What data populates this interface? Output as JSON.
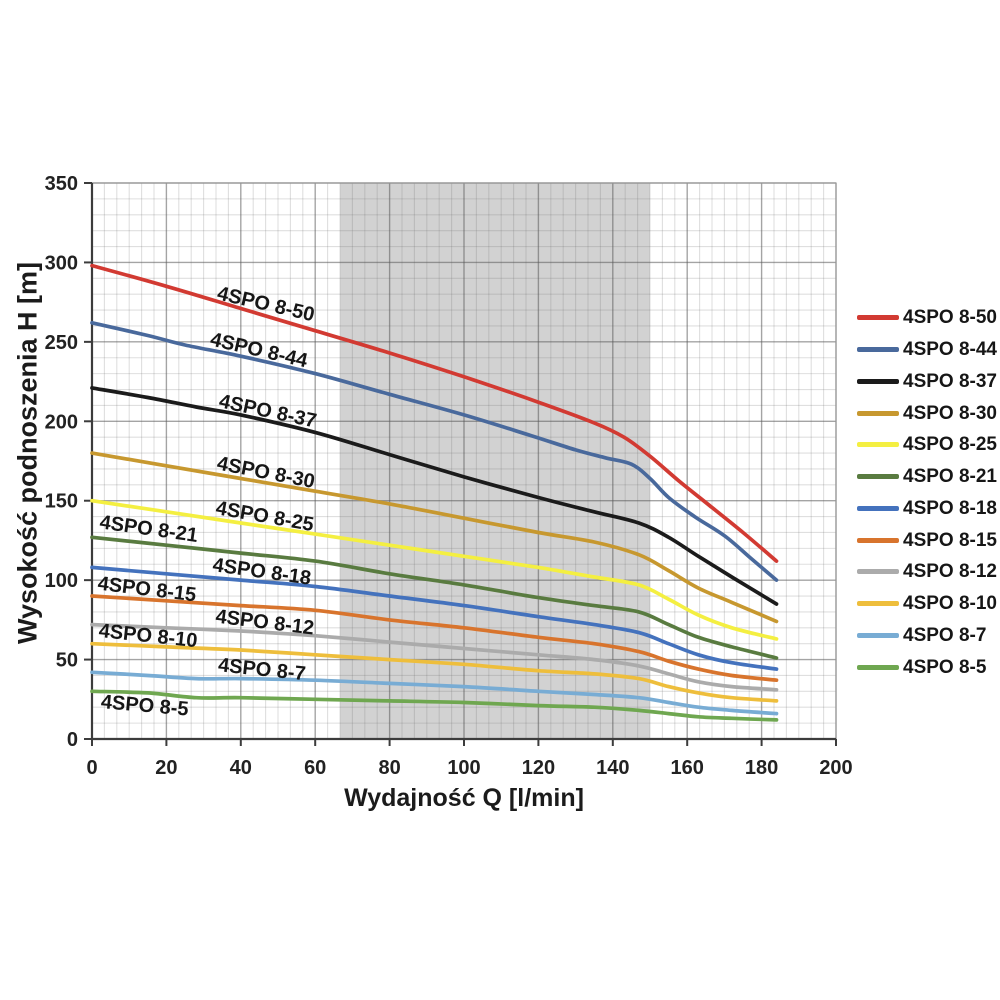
{
  "chart_data": {
    "type": "line",
    "title": "",
    "xlabel": "Wydajność Q [l/min]",
    "ylabel": "Wysokość podnoszenia H [m]",
    "xlim": [
      0,
      200
    ],
    "ylim": [
      0,
      350
    ],
    "x_major_ticks": [
      0,
      20,
      40,
      60,
      80,
      100,
      120,
      140,
      160,
      180,
      200
    ],
    "y_major_ticks": [
      0,
      50,
      100,
      150,
      200,
      250,
      300,
      350
    ],
    "x_minor_divisions": 6,
    "y_minor_divisions": 5,
    "grid": true,
    "legend_position": "right",
    "operating_band": {
      "x0": 66.7,
      "x1": 150,
      "color": "#d2d2d2"
    },
    "series": [
      {
        "name": "4SPO 8-50",
        "color": "#d23a32",
        "points": [
          [
            0,
            298
          ],
          [
            20,
            285
          ],
          [
            40,
            271
          ],
          [
            60,
            257
          ],
          [
            80,
            243
          ],
          [
            100,
            228
          ],
          [
            120,
            212
          ],
          [
            135,
            199
          ],
          [
            143,
            190
          ],
          [
            150,
            178
          ],
          [
            158,
            162
          ],
          [
            166,
            147
          ],
          [
            175,
            130
          ],
          [
            184,
            112
          ]
        ],
        "label": {
          "q": 46.8,
          "h": 274.2,
          "angle": 13
        }
      },
      {
        "name": "4SPO 8-44",
        "color": "#49699c",
        "points": [
          [
            0,
            262
          ],
          [
            15,
            254
          ],
          [
            25,
            248
          ],
          [
            40,
            241
          ],
          [
            60,
            230
          ],
          [
            80,
            217
          ],
          [
            100,
            204
          ],
          [
            118,
            191
          ],
          [
            130,
            182
          ],
          [
            138,
            177
          ],
          [
            145,
            173
          ],
          [
            150,
            164
          ],
          [
            155,
            152
          ],
          [
            162,
            140
          ],
          [
            170,
            128
          ],
          [
            177,
            114
          ],
          [
            184,
            100
          ]
        ],
        "label": {
          "q": 44.9,
          "h": 245.2,
          "angle": 13
        }
      },
      {
        "name": "4SPO 8-37",
        "color": "#1b1b1b",
        "points": [
          [
            0,
            221
          ],
          [
            15,
            215
          ],
          [
            28,
            209
          ],
          [
            40,
            204
          ],
          [
            60,
            193
          ],
          [
            80,
            179
          ],
          [
            100,
            165
          ],
          [
            120,
            152
          ],
          [
            135,
            143
          ],
          [
            147,
            136
          ],
          [
            155,
            127
          ],
          [
            163,
            115
          ],
          [
            172,
            102
          ],
          [
            184,
            85
          ]
        ],
        "label": {
          "q": 47.3,
          "h": 206.8,
          "angle": 12
        }
      },
      {
        "name": "4SPO 8-30",
        "color": "#c7982f",
        "points": [
          [
            0,
            180
          ],
          [
            20,
            172
          ],
          [
            40,
            164
          ],
          [
            60,
            156
          ],
          [
            80,
            148
          ],
          [
            100,
            139
          ],
          [
            120,
            130
          ],
          [
            135,
            124
          ],
          [
            147,
            116
          ],
          [
            155,
            106
          ],
          [
            163,
            95
          ],
          [
            172,
            86
          ],
          [
            184,
            74
          ]
        ],
        "label": {
          "q": 46.8,
          "h": 168.2,
          "angle": 11
        }
      },
      {
        "name": "4SPO 8-25",
        "color": "#f4ef41",
        "points": [
          [
            0,
            150
          ],
          [
            20,
            143
          ],
          [
            40,
            136
          ],
          [
            60,
            129
          ],
          [
            80,
            122
          ],
          [
            100,
            115
          ],
          [
            120,
            108
          ],
          [
            135,
            102
          ],
          [
            147,
            97
          ],
          [
            155,
            88
          ],
          [
            163,
            78
          ],
          [
            172,
            70
          ],
          [
            184,
            63
          ]
        ],
        "label": {
          "q": 46.5,
          "h": 140.6,
          "angle": 10
        }
      },
      {
        "name": "4SPO 8-21",
        "color": "#597b40",
        "points": [
          [
            0,
            127
          ],
          [
            20,
            122
          ],
          [
            40,
            117
          ],
          [
            60,
            112
          ],
          [
            80,
            104
          ],
          [
            100,
            97
          ],
          [
            120,
            89
          ],
          [
            135,
            84
          ],
          [
            147,
            80
          ],
          [
            155,
            72
          ],
          [
            163,
            64
          ],
          [
            172,
            58
          ],
          [
            184,
            51
          ]
        ],
        "label": {
          "q": 15.3,
          "h": 132.7,
          "angle": 8
        }
      },
      {
        "name": "4SPO 8-18",
        "color": "#4472bd",
        "points": [
          [
            0,
            108
          ],
          [
            20,
            104
          ],
          [
            40,
            100
          ],
          [
            60,
            96
          ],
          [
            80,
            90
          ],
          [
            100,
            84
          ],
          [
            120,
            77
          ],
          [
            135,
            72
          ],
          [
            147,
            67
          ],
          [
            155,
            60
          ],
          [
            163,
            53
          ],
          [
            172,
            48
          ],
          [
            184,
            44
          ]
        ],
        "label": {
          "q": 45.7,
          "h": 105.8,
          "angle": 8
        }
      },
      {
        "name": "4SPO 8-15",
        "color": "#d8742d",
        "points": [
          [
            0,
            90
          ],
          [
            20,
            87
          ],
          [
            40,
            84
          ],
          [
            60,
            81
          ],
          [
            80,
            75
          ],
          [
            100,
            70
          ],
          [
            120,
            64
          ],
          [
            135,
            60
          ],
          [
            147,
            55
          ],
          [
            155,
            49
          ],
          [
            163,
            44
          ],
          [
            172,
            40
          ],
          [
            184,
            37
          ]
        ],
        "label": {
          "q": 14.8,
          "h": 94.7,
          "angle": 7
        }
      },
      {
        "name": "4SPO 8-12",
        "color": "#ababab",
        "points": [
          [
            0,
            72
          ],
          [
            20,
            70
          ],
          [
            40,
            68
          ],
          [
            60,
            65
          ],
          [
            80,
            61
          ],
          [
            100,
            57
          ],
          [
            120,
            53
          ],
          [
            135,
            50
          ],
          [
            147,
            46
          ],
          [
            155,
            41
          ],
          [
            163,
            36
          ],
          [
            172,
            33
          ],
          [
            184,
            31
          ]
        ],
        "label": {
          "q": 46.5,
          "h": 73.9,
          "angle": 7
        }
      },
      {
        "name": "4SPO 8-10",
        "color": "#eebe3c",
        "points": [
          [
            0,
            60
          ],
          [
            20,
            58
          ],
          [
            40,
            56
          ],
          [
            60,
            53
          ],
          [
            80,
            50
          ],
          [
            100,
            47
          ],
          [
            120,
            43
          ],
          [
            135,
            41
          ],
          [
            147,
            38
          ],
          [
            155,
            33
          ],
          [
            163,
            29
          ],
          [
            172,
            26
          ],
          [
            184,
            24
          ]
        ],
        "label": {
          "q": 15.1,
          "h": 65.4,
          "angle": 6
        }
      },
      {
        "name": "4SPO 8-7",
        "color": "#78acd4",
        "points": [
          [
            0,
            42
          ],
          [
            15,
            40
          ],
          [
            28,
            38
          ],
          [
            40,
            38
          ],
          [
            60,
            37
          ],
          [
            80,
            35
          ],
          [
            100,
            33
          ],
          [
            120,
            30
          ],
          [
            135,
            28
          ],
          [
            147,
            26
          ],
          [
            155,
            23
          ],
          [
            163,
            20
          ],
          [
            172,
            18
          ],
          [
            184,
            16
          ]
        ],
        "label": {
          "q": 45.7,
          "h": 44.2,
          "angle": 6
        }
      },
      {
        "name": "4SPO 8-5",
        "color": "#6fa750",
        "points": [
          [
            0,
            30
          ],
          [
            15,
            29
          ],
          [
            28,
            26
          ],
          [
            40,
            26
          ],
          [
            60,
            25
          ],
          [
            80,
            24
          ],
          [
            100,
            23
          ],
          [
            120,
            21
          ],
          [
            135,
            20
          ],
          [
            147,
            18
          ],
          [
            155,
            16
          ],
          [
            163,
            14
          ],
          [
            172,
            13
          ],
          [
            184,
            12
          ]
        ],
        "label": {
          "q": 14.2,
          "h": 21.5,
          "angle": 5
        }
      }
    ]
  }
}
